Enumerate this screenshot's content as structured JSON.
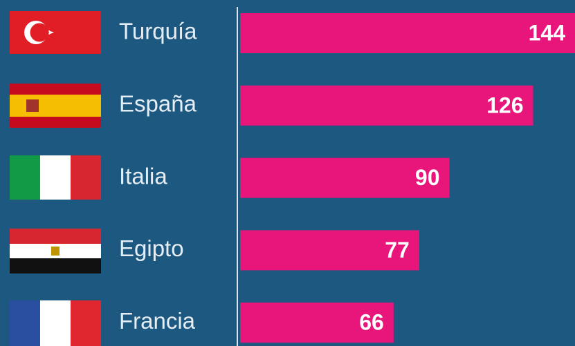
{
  "chart_data": {
    "type": "bar",
    "orientation": "horizontal",
    "categories": [
      "Turquía",
      "España",
      "Italia",
      "Egipto",
      "Francia"
    ],
    "values": [
      144,
      126,
      90,
      77,
      66
    ],
    "color": "#e8157a"
  }
}
